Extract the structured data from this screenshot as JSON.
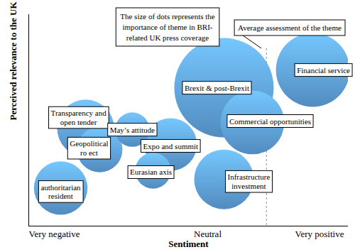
{
  "chart_data": {
    "type": "scatter",
    "x_label": "Sentiment",
    "y_label": "Perceived relevance to the UK",
    "annotations": [
      "The size of dots represents the\nimportance of theme in BRI-\nrelated UK press coverage",
      "Average assessment of the theme"
    ],
    "labels": [
      "Transparency and\nopen tender",
      "Geopolitical\nro ect",
      "May’s attitude",
      "Eurasian axis",
      "Expo and summit",
      "authoritarian\nresident",
      "Brexit & post-Brexit",
      "Financial service",
      "Commercial opportunities",
      "Infrastructure\ninvestment"
    ],
    "x": [
      17.8,
      22.2,
      32.4,
      38.9,
      44.4,
      10,
      61.1,
      88.9,
      70,
      61.1
    ],
    "values": [
      46.3,
      36.2,
      45.6,
      26.2,
      38.6,
      18,
      65.4,
      73.8,
      49,
      22.1
    ],
    "sizes": [
      33,
      21,
      12,
      13,
      28,
      29,
      100,
      55,
      41,
      36
    ],
    "average": 74.4,
    "xlim": [
      0,
      100
    ],
    "ylim": [
      0,
      100
    ],
    "xticks": [
      {
        "value": 8,
        "label": "Very negative"
      },
      {
        "value": 56,
        "label": "Neutral"
      },
      {
        "value": 91,
        "label": "Very positive"
      }
    ],
    "tick_labels": "x",
    "color": "#5b9bd5",
    "marker": "circle"
  }
}
